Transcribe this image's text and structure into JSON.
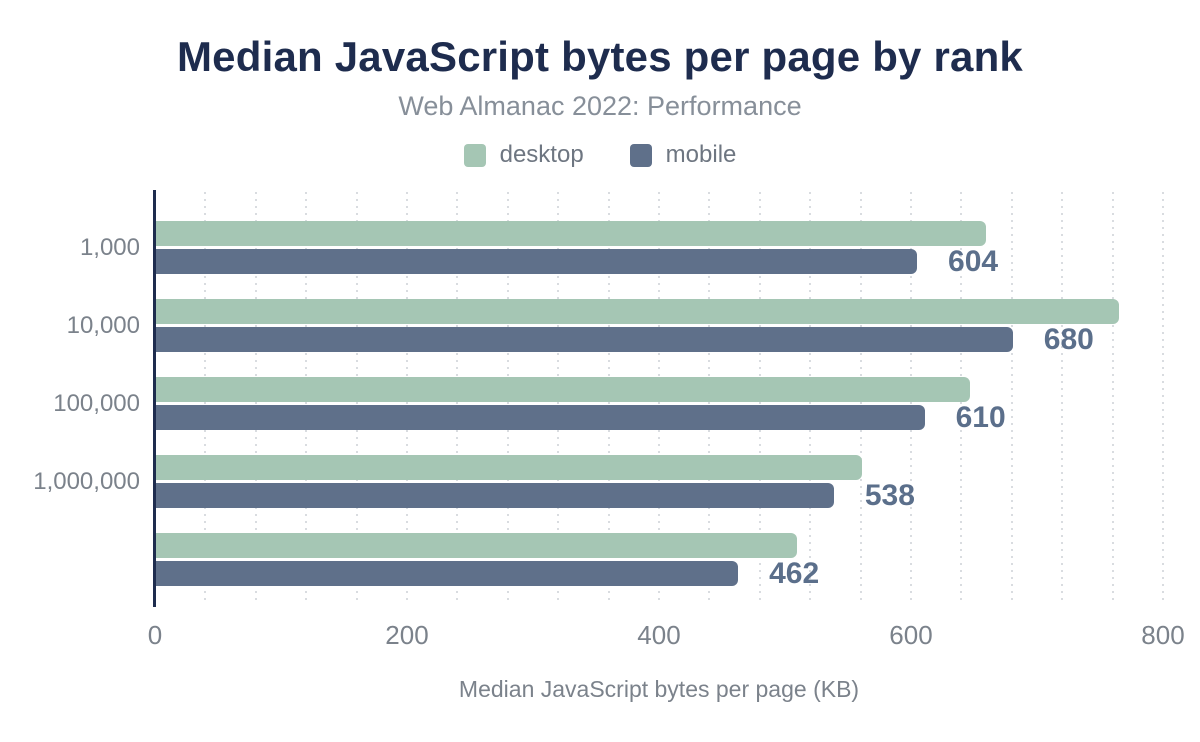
{
  "header": {
    "title": "Median JavaScript bytes per page by rank",
    "subtitle": "Web Almanac 2022: Performance"
  },
  "chart_data": {
    "type": "bar",
    "orientation": "horizontal",
    "title": "Median JavaScript bytes per page by rank",
    "subtitle": "Web Almanac 2022: Performance",
    "categories": [
      "1,000",
      "10,000",
      "100,000",
      "1,000,000",
      ""
    ],
    "series": [
      {
        "name": "desktop",
        "color": "#a5c6b4",
        "values": [
          659,
          764,
          646,
          560,
          509
        ],
        "labels_shown": false
      },
      {
        "name": "mobile",
        "color": "#5f708a",
        "values": [
          604,
          680,
          610,
          538,
          462
        ],
        "labels_shown": true
      }
    ],
    "xlabel": "Median JavaScript bytes per page (KB)",
    "x_ticks": [
      "0",
      "200",
      "400",
      "600",
      "800"
    ],
    "xlim": [
      0,
      800
    ],
    "grid": "vertical-dotted",
    "gridline_interval": 40,
    "legend_position": "top",
    "colors": {
      "title": "#1e2c4e",
      "subtitle": "#878f99",
      "axis_line": "#1e2c4e",
      "tick_labels": "#7b828b",
      "value_labels": "#5b6f8b",
      "gridlines": "#d9dce0",
      "background": "#ffffff"
    }
  }
}
